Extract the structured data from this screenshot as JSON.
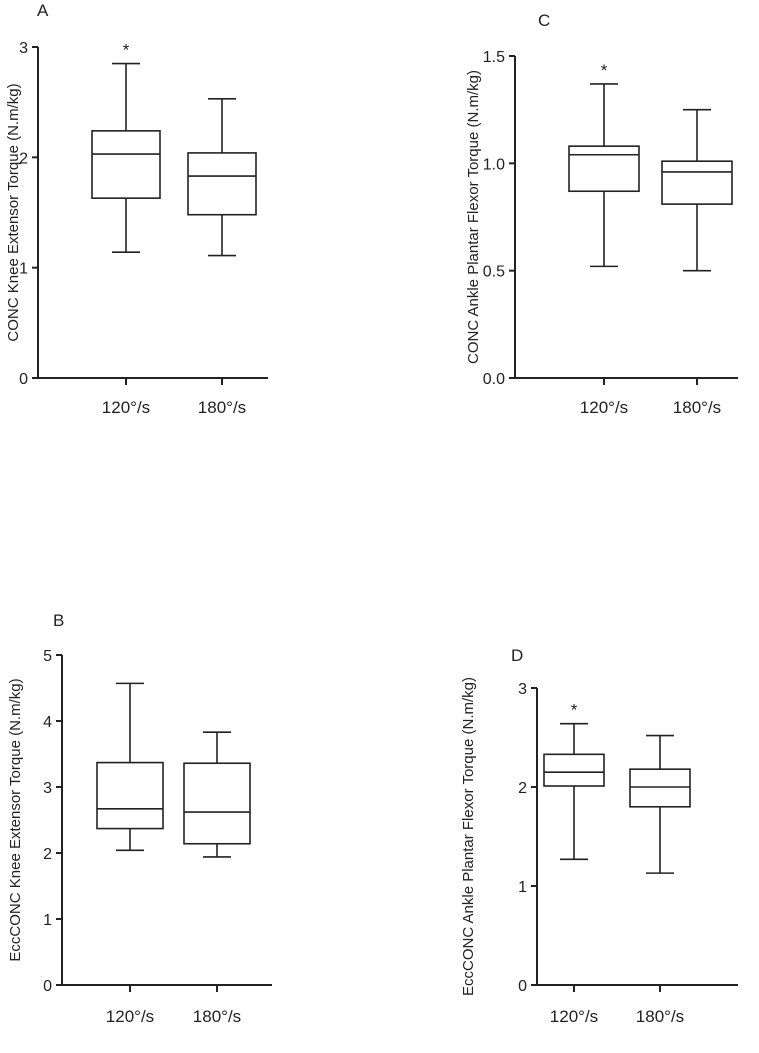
{
  "chart_data": [
    {
      "id": "A",
      "type": "box",
      "panel_label": "A",
      "ylabel": "CONC Knee Extensor Torque (N.m/kg)",
      "ylim": [
        0,
        3
      ],
      "yticks": [
        "0",
        "1",
        "2",
        "3"
      ],
      "yticks_values": [
        0,
        1,
        2,
        3
      ],
      "categories": [
        "120°/s",
        "180°/s"
      ],
      "boxes": [
        {
          "min": 1.14,
          "q1": 1.63,
          "median": 2.03,
          "q3": 2.24,
          "max": 2.85,
          "annotation": "*"
        },
        {
          "min": 1.11,
          "q1": 1.48,
          "median": 1.83,
          "q3": 2.04,
          "max": 2.53,
          "annotation": ""
        }
      ]
    },
    {
      "id": "C",
      "type": "box",
      "panel_label": "C",
      "ylabel": "CONC Ankle Plantar Flexor Torque (N.m/kg)",
      "ylim": [
        0,
        1.5
      ],
      "yticks": [
        "0.0",
        "0.5",
        "1.0",
        "1.5"
      ],
      "yticks_values": [
        0,
        0.5,
        1.0,
        1.5
      ],
      "categories": [
        "120°/s",
        "180°/s"
      ],
      "boxes": [
        {
          "min": 0.52,
          "q1": 0.87,
          "median": 1.04,
          "q3": 1.08,
          "max": 1.37,
          "annotation": "*"
        },
        {
          "min": 0.5,
          "q1": 0.81,
          "median": 0.96,
          "q3": 1.01,
          "max": 1.25,
          "annotation": ""
        }
      ]
    },
    {
      "id": "B",
      "type": "box",
      "panel_label": "B",
      "ylabel": "EccCONC Knee Extensor Torque (N.m/kg)",
      "ylim": [
        0,
        5
      ],
      "yticks": [
        "0",
        "1",
        "2",
        "3",
        "4",
        "5"
      ],
      "yticks_values": [
        0,
        1,
        2,
        3,
        4,
        5
      ],
      "categories": [
        "120°/s",
        "180°/s"
      ],
      "boxes": [
        {
          "min": 2.04,
          "q1": 2.37,
          "median": 2.67,
          "q3": 3.37,
          "max": 4.57,
          "annotation": ""
        },
        {
          "min": 1.94,
          "q1": 2.14,
          "median": 2.62,
          "q3": 3.36,
          "max": 3.83,
          "annotation": ""
        }
      ]
    },
    {
      "id": "D",
      "type": "box",
      "panel_label": "D",
      "ylabel": "EccCONC Ankle Plantar Flexor Torque (N.m/kg)",
      "ylim": [
        0,
        3
      ],
      "yticks": [
        "0",
        "1",
        "2",
        "3"
      ],
      "yticks_values": [
        0,
        1,
        2,
        3
      ],
      "categories": [
        "120°/s",
        "180°/s"
      ],
      "boxes": [
        {
          "min": 1.27,
          "q1": 2.01,
          "median": 2.15,
          "q3": 2.33,
          "max": 2.64,
          "annotation": "*"
        },
        {
          "min": 1.13,
          "q1": 1.8,
          "median": 2.0,
          "q3": 2.18,
          "max": 2.52,
          "annotation": ""
        }
      ]
    }
  ]
}
